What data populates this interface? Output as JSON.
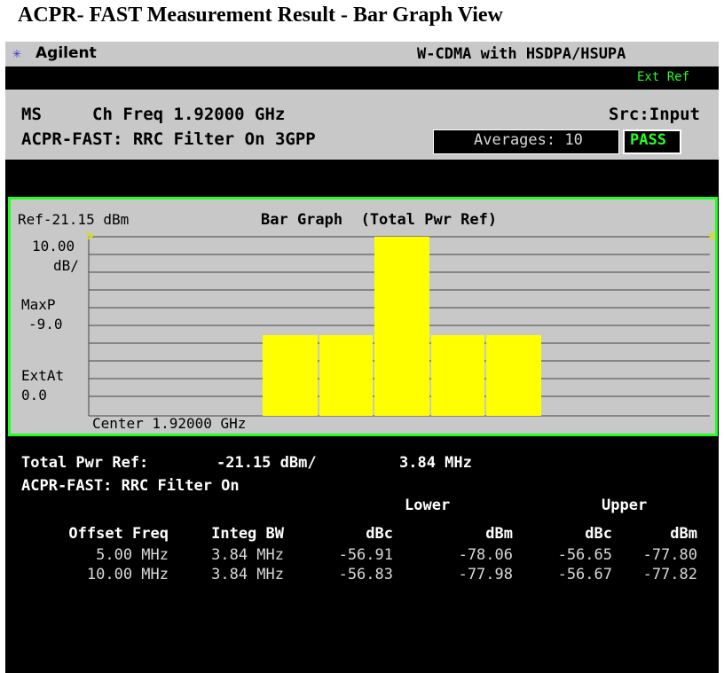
{
  "title": "ACPR- FAST Measurement Result - Bar Graph View",
  "header": {
    "brand": "Agilent",
    "mode": "W-CDMA with HSDPA/HSUPA",
    "ext_ref": "Ext Ref"
  },
  "status": {
    "ms": "MS",
    "ch_freq": "Ch Freq 1.92000 GHz",
    "src": "Src:Input",
    "filter": "ACPR-FAST: RRC Filter On 3GPP",
    "averages": "Averages: 10",
    "result": "PASS"
  },
  "graph": {
    "ref": "Ref-21.15 dBm",
    "title": "Bar Graph  (Total Pwr Ref)",
    "scale": [
      "10.00",
      "dB/"
    ],
    "maxp": [
      "MaxP",
      "-9.0"
    ],
    "extat": [
      "ExtAt",
      "0.0"
    ],
    "center": "Center 1.92000 GHz"
  },
  "results": {
    "total_label": "Total Pwr Ref:",
    "total_value": "-21.15 dBm/",
    "total_bw": "3.84 MHz",
    "filter": "ACPR-FAST: RRC Filter On",
    "lower": "Lower",
    "upper": "Upper",
    "headers": [
      "Offset Freq",
      "Integ BW",
      "dBc",
      "dBm",
      "dBc",
      "dBm"
    ],
    "rows": [
      [
        "5.00 MHz",
        "3.84 MHz",
        "-56.91",
        "-78.06",
        "-56.65",
        "-77.80"
      ],
      [
        "10.00 MHz",
        "3.84 MHz",
        "-56.83",
        "-77.98",
        "-56.67",
        "-77.82"
      ]
    ]
  }
}
